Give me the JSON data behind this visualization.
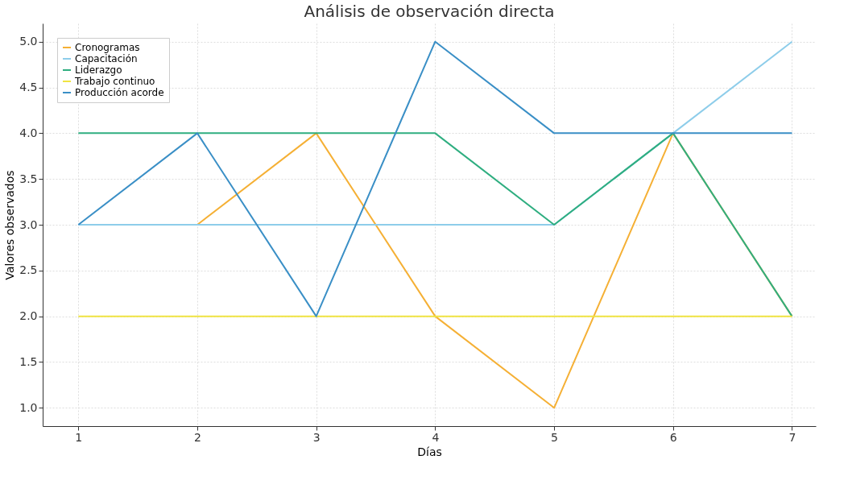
{
  "chart_data": {
    "type": "line",
    "title": "Análisis de observación directa",
    "xlabel": "Días",
    "ylabel": "Valores observados",
    "x": [
      1,
      2,
      3,
      4,
      5,
      6,
      7
    ],
    "series": [
      {
        "name": "Cronogramas",
        "color": "#f5b035",
        "values": [
          null,
          3,
          4,
          2,
          1,
          4,
          2
        ]
      },
      {
        "name": "Capacitación",
        "color": "#8ecdea",
        "values": [
          3,
          3,
          3,
          3,
          3,
          4,
          5
        ]
      },
      {
        "name": "Liderazgo",
        "color": "#2fae80",
        "values": [
          4,
          4,
          4,
          4,
          3,
          4,
          2
        ]
      },
      {
        "name": "Trabajo continuo",
        "color": "#f0e442",
        "values": [
          2,
          2,
          2,
          2,
          2,
          2,
          2
        ]
      },
      {
        "name": "Producción acorde",
        "color": "#3a8fc6",
        "values": [
          3,
          4,
          2,
          5,
          4,
          4,
          4
        ]
      }
    ],
    "xlim": [
      0.7,
      7.2
    ],
    "ylim": [
      0.8,
      5.2
    ],
    "xticks": [
      1,
      2,
      3,
      4,
      5,
      6,
      7
    ],
    "yticks": [
      {
        "value": 1,
        "label": "1.0"
      },
      {
        "value": 1.5,
        "label": "1.5"
      },
      {
        "value": 2,
        "label": "2.0"
      },
      {
        "value": 2.5,
        "label": "2.5"
      },
      {
        "value": 3,
        "label": "3.0"
      },
      {
        "value": 3.5,
        "label": "3.5"
      },
      {
        "value": 4,
        "label": "4.0"
      },
      {
        "value": 4.5,
        "label": "4.5"
      },
      {
        "value": 5,
        "label": "5.0"
      }
    ],
    "grid": true,
    "legend": "top left",
    "marker": "none",
    "line_style": "solid"
  }
}
